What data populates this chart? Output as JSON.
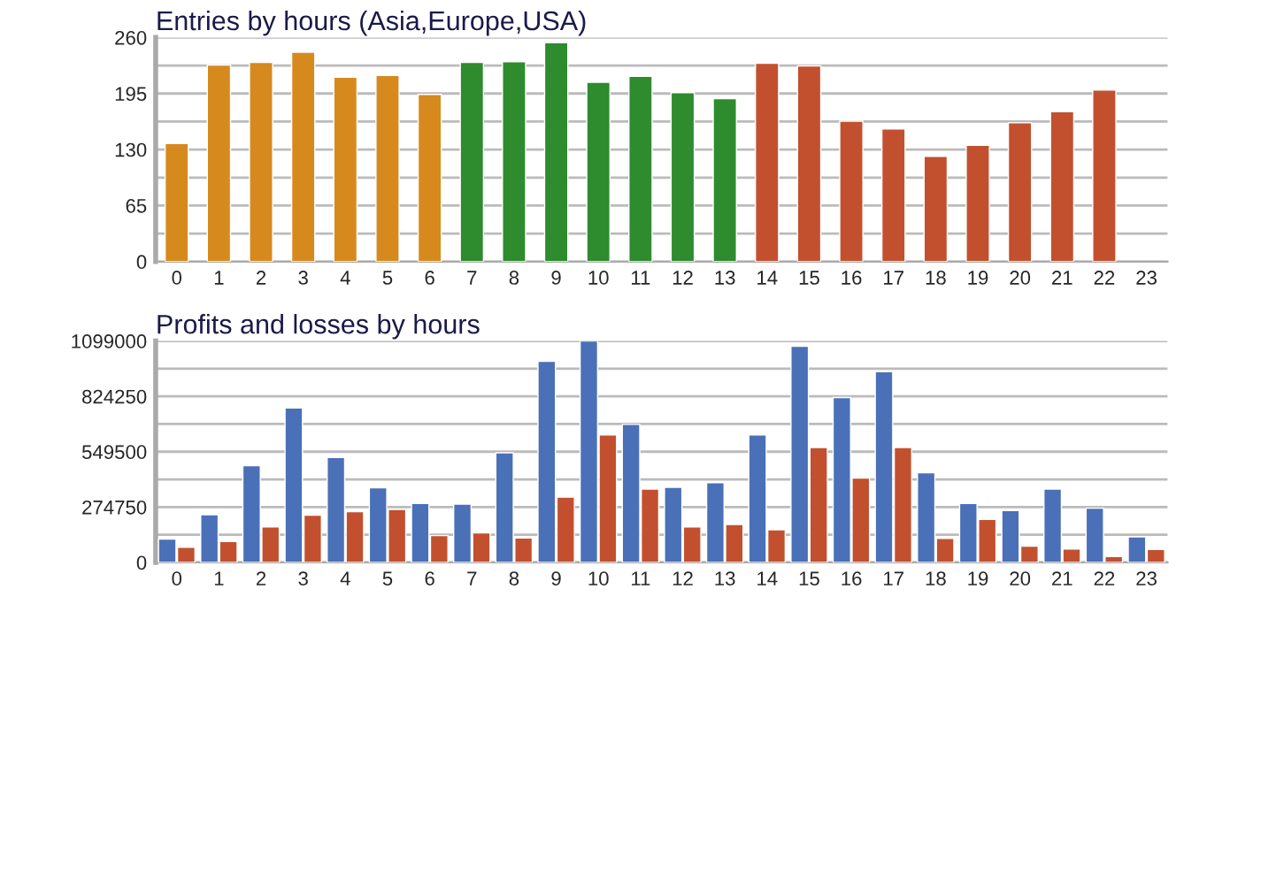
{
  "chart_data": [
    {
      "type": "bar",
      "title": "Entries by hours (Asia,Europe,USA)",
      "categories": [
        "0",
        "1",
        "2",
        "3",
        "4",
        "5",
        "6",
        "7",
        "8",
        "9",
        "10",
        "11",
        "12",
        "13",
        "14",
        "15",
        "16",
        "17",
        "18",
        "19",
        "20",
        "21",
        "22",
        "23"
      ],
      "values": [
        137,
        228,
        231,
        243,
        214,
        216,
        194,
        231,
        232,
        254,
        208,
        215,
        196,
        189,
        230,
        227,
        163,
        154,
        122,
        135,
        161,
        174,
        199,
        null
      ],
      "colors": [
        "#d68a1e",
        "#d68a1e",
        "#d68a1e",
        "#d68a1e",
        "#d68a1e",
        "#d68a1e",
        "#d68a1e",
        "#2e8b2e",
        "#2e8b2e",
        "#2e8b2e",
        "#2e8b2e",
        "#2e8b2e",
        "#2e8b2e",
        "#2e8b2e",
        "#c2502f",
        "#c2502f",
        "#c2502f",
        "#c2502f",
        "#c2502f",
        "#c2502f",
        "#c2502f",
        "#c2502f",
        "#c2502f",
        "#c2502f"
      ],
      "ylim": [
        0,
        260
      ],
      "yticks": [
        0,
        {
          "value": 32.5,
          "label": null
        },
        65,
        {
          "value": 97.5,
          "label": null
        },
        130,
        {
          "value": 162.5,
          "label": null
        },
        195,
        {
          "value": 227.5,
          "label": null
        },
        260
      ],
      "grid": "y"
    },
    {
      "type": "bar",
      "title": "Profits and losses by hours",
      "categories": [
        "0",
        "1",
        "2",
        "3",
        "4",
        "5",
        "6",
        "7",
        "8",
        "9",
        "10",
        "11",
        "12",
        "13",
        "14",
        "15",
        "16",
        "17",
        "18",
        "19",
        "20",
        "21",
        "22",
        "23"
      ],
      "series": [
        {
          "color": "#4a70b8",
          "values": [
            116000,
            237000,
            480000,
            766000,
            521000,
            370000,
            292000,
            289000,
            544000,
            998000,
            1099000,
            685000,
            373000,
            396000,
            633000,
            1073000,
            818000,
            946000,
            445000,
            292000,
            257000,
            364000,
            269000,
            127000
          ]
        },
        {
          "color": "#c2502f",
          "values": [
            75000,
            104000,
            176000,
            234000,
            252000,
            263000,
            133000,
            147000,
            121000,
            324000,
            633000,
            364000,
            176000,
            188000,
            162000,
            570000,
            419000,
            570000,
            119000,
            214000,
            81000,
            67000,
            29000,
            64000
          ]
        }
      ],
      "ylim": [
        0,
        1099000
      ],
      "yticks": [
        0,
        {
          "value": 137375,
          "label": null
        },
        274750,
        {
          "value": 412125,
          "label": null
        },
        549500,
        {
          "value": 686875,
          "label": null
        },
        824250,
        {
          "value": 961625,
          "label": null
        },
        1099000
      ],
      "grid": "y"
    }
  ]
}
